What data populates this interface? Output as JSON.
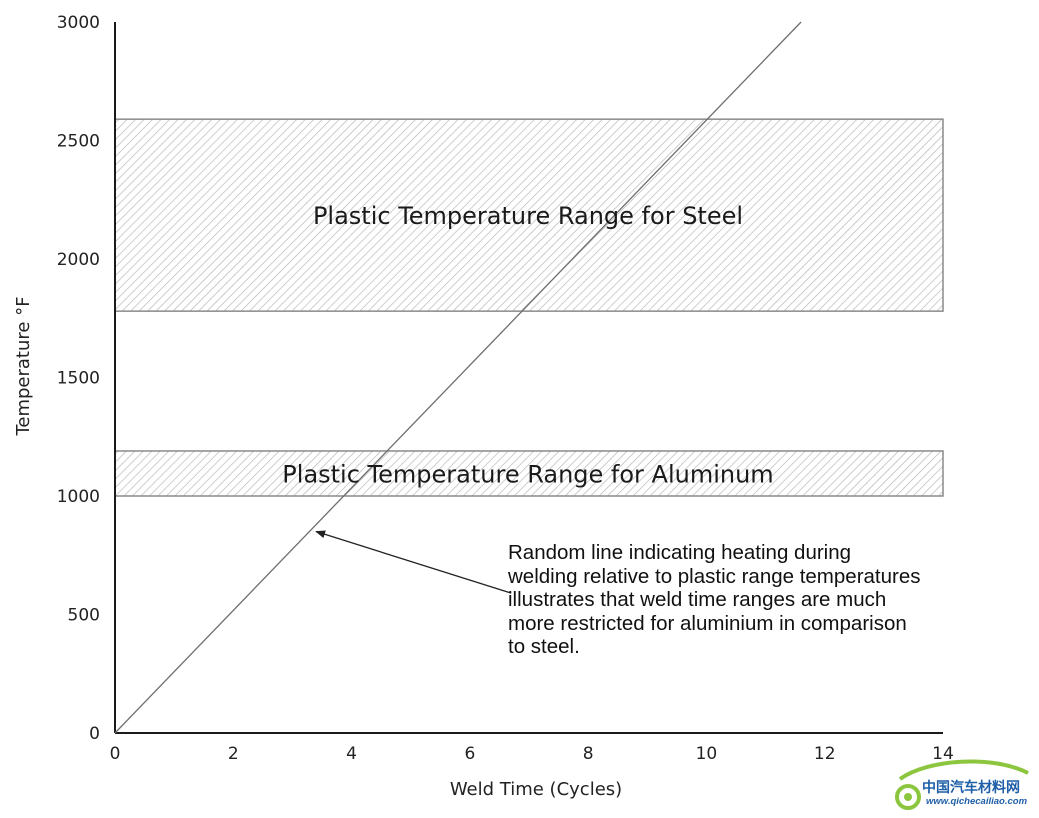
{
  "chart_data": {
    "type": "line",
    "xlabel": "Weld Time (Cycles)",
    "ylabel": "Temperature °F",
    "xlim": [
      0,
      14
    ],
    "ylim": [
      0,
      3000
    ],
    "x_ticks": [
      0,
      2,
      4,
      6,
      8,
      10,
      12,
      14
    ],
    "y_ticks": [
      0,
      500,
      1000,
      1500,
      2000,
      2500,
      3000
    ],
    "grid": false,
    "series": [
      {
        "x": [
          0,
          11.6
        ],
        "y": [
          0,
          3000
        ],
        "color": "#6e6e6e"
      }
    ],
    "bands": [
      {
        "label": "Plastic Temperature Range for Steel",
        "x": [
          0,
          14
        ],
        "y": [
          1780,
          2590
        ]
      },
      {
        "label": "Plastic Temperature Range for Aluminum",
        "x": [
          0,
          14
        ],
        "y": [
          1000,
          1190
        ]
      }
    ],
    "annotation": {
      "lines": [
        "Random line indicating heating during",
        "welding relative to plastic range temperatures",
        "illustrates that weld time ranges are much",
        "more restricted for aluminium in comparison",
        "to steel."
      ],
      "arrow_from": [
        6.7,
        590
      ],
      "arrow_to": [
        3.4,
        850
      ]
    }
  },
  "watermark": {
    "text_cn": "中国汽车材料网",
    "url": "www.qichecailiao.com"
  }
}
